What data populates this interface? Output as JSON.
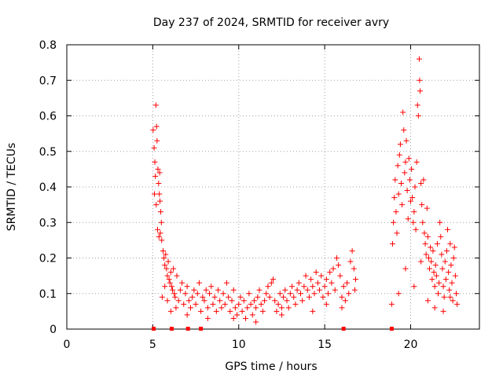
{
  "chart_data": {
    "type": "scatter",
    "title": "Day 237 of 2024, SRMTID for receiver avry",
    "xlabel": "GPS time / hours",
    "ylabel": "SRMTID / TECUs",
    "xlim": [
      0,
      24
    ],
    "ylim": [
      0,
      0.8
    ],
    "x_ticks": [
      0,
      5,
      10,
      15,
      20
    ],
    "x_tick_labels": [
      "0",
      "5",
      "10",
      "15",
      "20"
    ],
    "y_ticks": [
      0,
      0.1,
      0.2,
      0.3,
      0.4,
      0.5,
      0.6,
      0.7,
      0.8
    ],
    "y_tick_labels": [
      "0",
      "0.1",
      "0.2",
      "0.3",
      "0.4",
      "0.5",
      "0.6",
      "0.7",
      "0.8"
    ],
    "grid": true,
    "marker": "+",
    "series_color": "#ff0000",
    "series": [
      {
        "name": "SRMTID",
        "points": [
          [
            5.02,
            0.56
          ],
          [
            5.08,
            0.51
          ],
          [
            5.12,
            0.47
          ],
          [
            5.18,
            0.63
          ],
          [
            5.22,
            0.57
          ],
          [
            5.25,
            0.53
          ],
          [
            5.3,
            0.45
          ],
          [
            5.34,
            0.41
          ],
          [
            5.38,
            0.38
          ],
          [
            5.42,
            0.36
          ],
          [
            5.46,
            0.33
          ],
          [
            5.5,
            0.3
          ],
          [
            5.1,
            0.38
          ],
          [
            5.2,
            0.35
          ],
          [
            5.28,
            0.28
          ],
          [
            5.36,
            0.26
          ],
          [
            5.44,
            0.27
          ],
          [
            5.52,
            0.25
          ],
          [
            5.15,
            0.43
          ],
          [
            5.4,
            0.44
          ],
          [
            5.6,
            0.22
          ],
          [
            5.65,
            0.2
          ],
          [
            5.7,
            0.18
          ],
          [
            5.75,
            0.21
          ],
          [
            5.8,
            0.17
          ],
          [
            5.85,
            0.15
          ],
          [
            5.9,
            0.19
          ],
          [
            5.95,
            0.14
          ],
          [
            6.0,
            0.13
          ],
          [
            6.05,
            0.16
          ],
          [
            6.1,
            0.12
          ],
          [
            6.15,
            0.11
          ],
          [
            6.2,
            0.17
          ],
          [
            6.25,
            0.1
          ],
          [
            6.3,
            0.09
          ],
          [
            6.4,
            0.15
          ],
          [
            6.5,
            0.08
          ],
          [
            6.6,
            0.11
          ],
          [
            6.7,
            0.13
          ],
          [
            6.8,
            0.07
          ],
          [
            5.55,
            0.09
          ],
          [
            5.7,
            0.12
          ],
          [
            5.85,
            0.08
          ],
          [
            6.05,
            0.05
          ],
          [
            6.35,
            0.06
          ],
          [
            6.9,
            0.1
          ],
          [
            7.0,
            0.12
          ],
          [
            7.1,
            0.08
          ],
          [
            7.2,
            0.06
          ],
          [
            7.3,
            0.09
          ],
          [
            7.4,
            0.11
          ],
          [
            7.5,
            0.07
          ],
          [
            7.6,
            0.1
          ],
          [
            7.7,
            0.13
          ],
          [
            7.8,
            0.05
          ],
          [
            7.9,
            0.09
          ],
          [
            8.0,
            0.08
          ],
          [
            8.1,
            0.11
          ],
          [
            8.2,
            0.06
          ],
          [
            8.3,
            0.1
          ],
          [
            8.4,
            0.12
          ],
          [
            8.5,
            0.07
          ],
          [
            8.6,
            0.09
          ],
          [
            8.7,
            0.05
          ],
          [
            8.8,
            0.11
          ],
          [
            8.9,
            0.08
          ],
          [
            9.0,
            0.06
          ],
          [
            9.1,
            0.1
          ],
          [
            9.2,
            0.07
          ],
          [
            9.3,
            0.13
          ],
          [
            9.4,
            0.09
          ],
          [
            9.5,
            0.05
          ],
          [
            9.6,
            0.08
          ],
          [
            9.7,
            0.11
          ],
          [
            9.8,
            0.06
          ],
          [
            9.9,
            0.04
          ],
          [
            10.0,
            0.07
          ],
          [
            10.1,
            0.09
          ],
          [
            10.2,
            0.05
          ],
          [
            10.3,
            0.08
          ],
          [
            10.4,
            0.03
          ],
          [
            10.5,
            0.06
          ],
          [
            10.6,
            0.1
          ],
          [
            10.7,
            0.07
          ],
          [
            10.8,
            0.04
          ],
          [
            10.9,
            0.08
          ],
          [
            11.0,
            0.06
          ],
          [
            11.1,
            0.09
          ],
          [
            11.2,
            0.11
          ],
          [
            11.3,
            0.07
          ],
          [
            11.4,
            0.05
          ],
          [
            11.5,
            0.08
          ],
          [
            11.6,
            0.1
          ],
          [
            11.7,
            0.12
          ],
          [
            11.8,
            0.09
          ],
          [
            11.9,
            0.13
          ],
          [
            12.0,
            0.14
          ],
          [
            12.1,
            0.08
          ],
          [
            12.2,
            0.05
          ],
          [
            12.3,
            0.07
          ],
          [
            12.4,
            0.1
          ],
          [
            12.5,
            0.06
          ],
          [
            12.6,
            0.09
          ],
          [
            12.7,
            0.11
          ],
          [
            12.8,
            0.08
          ],
          [
            12.9,
            0.06
          ],
          [
            13.0,
            0.1
          ],
          [
            13.1,
            0.12
          ],
          [
            13.2,
            0.09
          ],
          [
            13.3,
            0.07
          ],
          [
            13.4,
            0.11
          ],
          [
            13.5,
            0.13
          ],
          [
            13.6,
            0.1
          ],
          [
            13.7,
            0.08
          ],
          [
            13.8,
            0.12
          ],
          [
            13.9,
            0.15
          ],
          [
            14.0,
            0.11
          ],
          [
            14.1,
            0.09
          ],
          [
            14.2,
            0.14
          ],
          [
            14.3,
            0.12
          ],
          [
            14.4,
            0.1
          ],
          [
            14.5,
            0.16
          ],
          [
            14.6,
            0.13
          ],
          [
            14.7,
            0.11
          ],
          [
            14.8,
            0.15
          ],
          [
            14.9,
            0.09
          ],
          [
            15.0,
            0.12
          ],
          [
            15.1,
            0.14
          ],
          [
            15.2,
            0.1
          ],
          [
            15.3,
            0.16
          ],
          [
            15.4,
            0.13
          ],
          [
            15.5,
            0.17
          ],
          [
            15.6,
            0.11
          ],
          [
            15.7,
            0.2
          ],
          [
            15.8,
            0.18
          ],
          [
            15.9,
            0.15
          ],
          [
            16.0,
            0.09
          ],
          [
            16.1,
            0.12
          ],
          [
            16.2,
            0.08
          ],
          [
            16.3,
            0.13
          ],
          [
            16.4,
            0.1
          ],
          [
            16.5,
            0.19
          ],
          [
            16.6,
            0.22
          ],
          [
            16.7,
            0.17
          ],
          [
            16.75,
            0.11
          ],
          [
            16.8,
            0.14
          ],
          [
            7.0,
            0.04
          ],
          [
            8.2,
            0.03
          ],
          [
            9.7,
            0.03
          ],
          [
            11.0,
            0.02
          ],
          [
            12.5,
            0.04
          ],
          [
            14.3,
            0.05
          ],
          [
            15.1,
            0.07
          ],
          [
            16.0,
            0.06
          ],
          [
            18.9,
            0.07
          ],
          [
            18.95,
            0.24
          ],
          [
            19.0,
            0.3
          ],
          [
            19.05,
            0.37
          ],
          [
            19.1,
            0.42
          ],
          [
            19.15,
            0.33
          ],
          [
            19.2,
            0.27
          ],
          [
            19.25,
            0.46
          ],
          [
            19.3,
            0.38
          ],
          [
            19.35,
            0.49
          ],
          [
            19.4,
            0.52
          ],
          [
            19.45,
            0.41
          ],
          [
            19.5,
            0.35
          ],
          [
            19.55,
            0.61
          ],
          [
            19.6,
            0.56
          ],
          [
            19.65,
            0.44
          ],
          [
            19.7,
            0.47
          ],
          [
            19.75,
            0.53
          ],
          [
            19.8,
            0.39
          ],
          [
            19.85,
            0.31
          ],
          [
            19.9,
            0.48
          ],
          [
            19.95,
            0.42
          ],
          [
            20.0,
            0.36
          ],
          [
            20.05,
            0.45
          ],
          [
            20.1,
            0.37
          ],
          [
            20.15,
            0.3
          ],
          [
            20.2,
            0.33
          ],
          [
            20.25,
            0.4
          ],
          [
            20.3,
            0.28
          ],
          [
            20.35,
            0.47
          ],
          [
            20.4,
            0.63
          ],
          [
            20.45,
            0.6
          ],
          [
            20.5,
            0.76
          ],
          [
            20.52,
            0.7
          ],
          [
            20.55,
            0.67
          ],
          [
            20.6,
            0.41
          ],
          [
            20.65,
            0.35
          ],
          [
            20.7,
            0.3
          ],
          [
            20.75,
            0.42
          ],
          [
            20.8,
            0.27
          ],
          [
            20.85,
            0.24
          ],
          [
            20.9,
            0.21
          ],
          [
            20.95,
            0.34
          ],
          [
            21.0,
            0.26
          ],
          [
            21.05,
            0.2
          ],
          [
            21.1,
            0.17
          ],
          [
            21.15,
            0.23
          ],
          [
            21.2,
            0.19
          ],
          [
            21.25,
            0.14
          ],
          [
            21.3,
            0.22
          ],
          [
            21.35,
            0.16
          ],
          [
            21.4,
            0.12
          ],
          [
            21.45,
            0.18
          ],
          [
            21.5,
            0.15
          ],
          [
            21.55,
            0.24
          ],
          [
            21.6,
            0.1
          ],
          [
            21.65,
            0.13
          ],
          [
            21.7,
            0.3
          ],
          [
            21.75,
            0.26
          ],
          [
            21.8,
            0.21
          ],
          [
            21.85,
            0.17
          ],
          [
            21.9,
            0.12
          ],
          [
            21.95,
            0.09
          ],
          [
            22.0,
            0.19
          ],
          [
            22.05,
            0.14
          ],
          [
            22.1,
            0.22
          ],
          [
            22.15,
            0.28
          ],
          [
            22.2,
            0.16
          ],
          [
            22.25,
            0.11
          ],
          [
            22.3,
            0.24
          ],
          [
            22.35,
            0.18
          ],
          [
            22.4,
            0.13
          ],
          [
            22.45,
            0.08
          ],
          [
            22.5,
            0.2
          ],
          [
            22.55,
            0.23
          ],
          [
            22.6,
            0.15
          ],
          [
            22.65,
            0.1
          ],
          [
            22.7,
            0.07
          ],
          [
            19.3,
            0.1
          ],
          [
            19.7,
            0.17
          ],
          [
            20.2,
            0.12
          ],
          [
            20.6,
            0.19
          ],
          [
            21.0,
            0.08
          ],
          [
            21.4,
            0.06
          ],
          [
            21.9,
            0.05
          ],
          [
            22.3,
            0.09
          ]
        ]
      }
    ],
    "zero_markers_x": [
      5.05,
      6.1,
      7.05,
      7.8,
      16.1,
      18.9
    ]
  }
}
